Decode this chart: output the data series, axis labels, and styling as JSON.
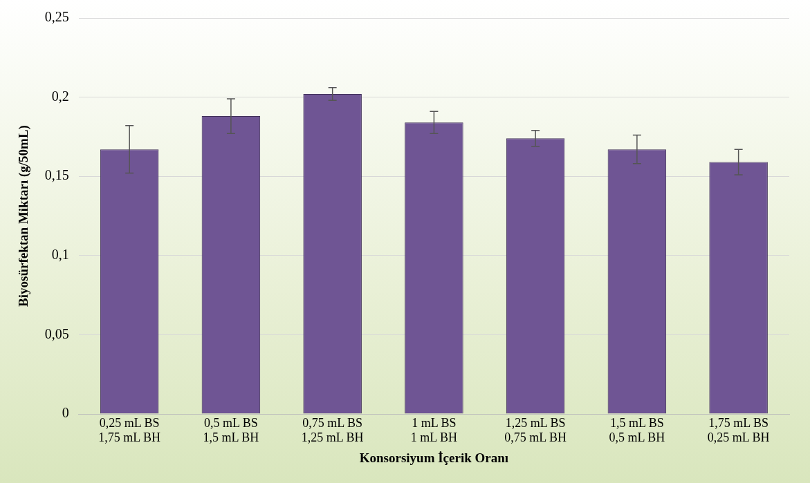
{
  "chart_data": {
    "type": "bar",
    "xlabel": "Konsorsiyum İçerik Oranı",
    "ylabel": "Biyosürfektan Miktarı (g/50mL)",
    "categories": [
      "0,25 mL BS\n1,75 mL BH",
      "0,5 mL BS\n1,5 mL BH",
      "0,75 mL BS\n1,25 mL BH",
      "1 mL BS\n1 mL BH",
      "1,25 mL BS\n0,75 mL BH",
      "1,5 mL BS\n0,5 mL BH",
      "1,75 mL BS\n0,25 mL BH"
    ],
    "values": [
      0.167,
      0.188,
      0.202,
      0.184,
      0.174,
      0.167,
      0.159
    ],
    "errors": [
      0.015,
      0.011,
      0.004,
      0.007,
      0.005,
      0.009,
      0.008
    ],
    "color": "#6f5594",
    "ylim": [
      0,
      0.25
    ],
    "yticks": [
      {
        "value": 0,
        "label": "0"
      },
      {
        "value": 0.05,
        "label": "0,05"
      },
      {
        "value": 0.1,
        "label": "0,1"
      },
      {
        "value": 0.15,
        "label": "0,15"
      },
      {
        "value": 0.2,
        "label": "0,2"
      },
      {
        "value": 0.25,
        "label": "0,25"
      }
    ],
    "grid": "y"
  }
}
